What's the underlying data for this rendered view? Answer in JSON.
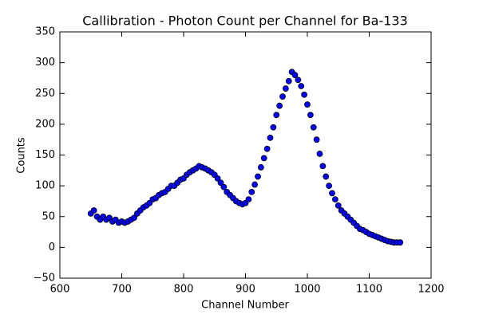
{
  "chart_data": {
    "type": "scatter",
    "title": "Callibration - Photon Count per Channel for Ba-133",
    "x_label": "Channel Number",
    "y_label": "Counts",
    "xlim": [
      600,
      1200
    ],
    "xticks": [
      600,
      700,
      800,
      900,
      1000,
      1100,
      1200
    ],
    "ylim": [
      -50,
      350
    ],
    "yticks": [
      {
        "value": -50,
        "label": "−50"
      },
      0,
      50,
      100,
      150,
      200,
      250,
      300,
      350
    ],
    "grid": false,
    "series": [
      {
        "color": "#0000ff",
        "x": [
          650,
          655,
          660,
          665,
          670,
          675,
          680,
          685,
          690,
          695,
          700,
          705,
          710,
          715,
          720,
          725,
          730,
          735,
          740,
          745,
          750,
          755,
          760,
          765,
          770,
          775,
          780,
          785,
          790,
          795,
          800,
          805,
          810,
          815,
          820,
          825,
          830,
          835,
          840,
          845,
          850,
          855,
          860,
          865,
          870,
          875,
          880,
          885,
          890,
          895,
          900,
          905,
          910,
          915,
          920,
          925,
          930,
          935,
          940,
          945,
          950,
          955,
          960,
          965,
          970,
          975,
          980,
          985,
          990,
          995,
          1000,
          1005,
          1010,
          1015,
          1020,
          1025,
          1030,
          1035,
          1040,
          1045,
          1050,
          1055,
          1060,
          1065,
          1070,
          1075,
          1080,
          1085,
          1090,
          1095,
          1100,
          1105,
          1110,
          1115,
          1120,
          1125,
          1130,
          1135,
          1140,
          1145,
          1150
        ],
        "values": [
          55,
          60,
          50,
          45,
          50,
          45,
          48,
          42,
          45,
          40,
          42,
          40,
          42,
          45,
          48,
          55,
          60,
          65,
          68,
          72,
          78,
          80,
          85,
          88,
          90,
          95,
          100,
          100,
          105,
          110,
          112,
          118,
          122,
          125,
          128,
          132,
          130,
          128,
          125,
          122,
          118,
          112,
          105,
          98,
          90,
          85,
          80,
          75,
          72,
          70,
          72,
          78,
          90,
          102,
          115,
          130,
          145,
          160,
          178,
          195,
          215,
          230,
          245,
          258,
          270,
          285,
          280,
          272,
          262,
          248,
          232,
          215,
          195,
          175,
          152,
          132,
          115,
          100,
          88,
          78,
          68,
          60,
          55,
          50,
          45,
          40,
          35,
          30,
          28,
          25,
          22,
          20,
          18,
          16,
          14,
          12,
          10,
          9,
          8,
          8,
          8
        ]
      }
    ]
  }
}
